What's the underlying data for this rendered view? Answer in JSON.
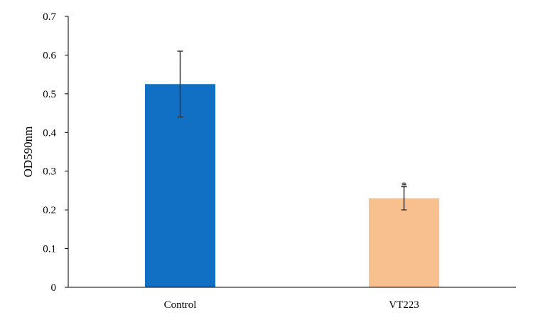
{
  "chart_data": {
    "type": "bar",
    "title": "",
    "xlabel": "",
    "ylabel": "OD590nm",
    "ylim": [
      0,
      0.7
    ],
    "yticks": [
      "0",
      "0.1",
      "0.2",
      "0.3",
      "0.4",
      "0.5",
      "0.6",
      "0.7"
    ],
    "categories": [
      "Control",
      "VT223"
    ],
    "values": [
      0.525,
      0.23
    ],
    "errors": [
      0.085,
      0.03
    ],
    "significance": [
      "",
      "*"
    ],
    "colors": [
      "#1170c4",
      "#f8c08f"
    ],
    "grid": false,
    "legend": "none"
  }
}
